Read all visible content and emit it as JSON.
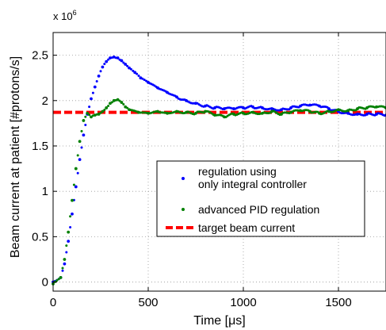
{
  "chart_data": {
    "type": "scatter",
    "xlabel": "Time [μs]",
    "ylabel": "Beam current at patient [#protons/s]",
    "y_multiplier_label": "x 10",
    "y_multiplier_exponent": "6",
    "xlim": [
      0,
      1750
    ],
    "ylim": [
      -0.1,
      2.75
    ],
    "x_ticks": [
      0,
      500,
      1000,
      1500
    ],
    "x_tick_labels": [
      "0",
      "500",
      "1000",
      "1500"
    ],
    "y_ticks": [
      0,
      0.5,
      1,
      1.5,
      2,
      2.5
    ],
    "y_tick_labels": [
      "0",
      "0.5",
      "1",
      "1.5",
      "2",
      "2.5"
    ],
    "grid": true,
    "legend_placement": "lower-right",
    "target": {
      "name": "target beam current",
      "value": 1.87,
      "color": "#ff0000"
    },
    "series": [
      {
        "name": "regulation using\n only integral controller",
        "color": "#0000ff",
        "x": [
          0,
          40,
          60,
          80,
          100,
          120,
          140,
          160,
          180,
          200,
          220,
          240,
          260,
          280,
          300,
          320,
          340,
          360,
          380,
          400,
          430,
          460,
          500,
          550,
          600,
          650,
          700,
          750,
          800,
          850,
          900,
          950,
          1000,
          1050,
          1100,
          1150,
          1200,
          1250,
          1300,
          1350,
          1400,
          1450,
          1500,
          1550,
          1600,
          1650,
          1700,
          1750
        ],
        "y": [
          0,
          0.05,
          0.2,
          0.45,
          0.75,
          1.05,
          1.35,
          1.62,
          1.85,
          2.02,
          2.15,
          2.27,
          2.37,
          2.43,
          2.47,
          2.48,
          2.47,
          2.44,
          2.4,
          2.36,
          2.31,
          2.25,
          2.2,
          2.14,
          2.09,
          2.04,
          2.0,
          1.97,
          1.94,
          1.92,
          1.91,
          1.91,
          1.92,
          1.93,
          1.92,
          1.91,
          1.9,
          1.92,
          1.94,
          1.95,
          1.94,
          1.91,
          1.88,
          1.86,
          1.85,
          1.85,
          1.85,
          1.84
        ]
      },
      {
        "name": "advanced PID regulation",
        "color": "#008000",
        "x": [
          0,
          40,
          60,
          80,
          100,
          120,
          140,
          160,
          180,
          200,
          220,
          240,
          260,
          280,
          300,
          320,
          340,
          360,
          380,
          400,
          450,
          500,
          550,
          600,
          650,
          700,
          750,
          800,
          850,
          900,
          950,
          1000,
          1050,
          1100,
          1150,
          1200,
          1250,
          1300,
          1350,
          1400,
          1450,
          1500,
          1550,
          1600,
          1650,
          1700,
          1750
        ],
        "y": [
          -0.02,
          0.05,
          0.25,
          0.55,
          0.9,
          1.25,
          1.55,
          1.78,
          1.86,
          1.82,
          1.84,
          1.85,
          1.88,
          1.92,
          1.97,
          2.0,
          2.01,
          1.98,
          1.93,
          1.9,
          1.87,
          1.86,
          1.88,
          1.86,
          1.88,
          1.87,
          1.86,
          1.88,
          1.84,
          1.82,
          1.85,
          1.86,
          1.87,
          1.86,
          1.88,
          1.85,
          1.87,
          1.89,
          1.88,
          1.86,
          1.88,
          1.9,
          1.89,
          1.91,
          1.92,
          1.93,
          1.92
        ]
      }
    ]
  }
}
